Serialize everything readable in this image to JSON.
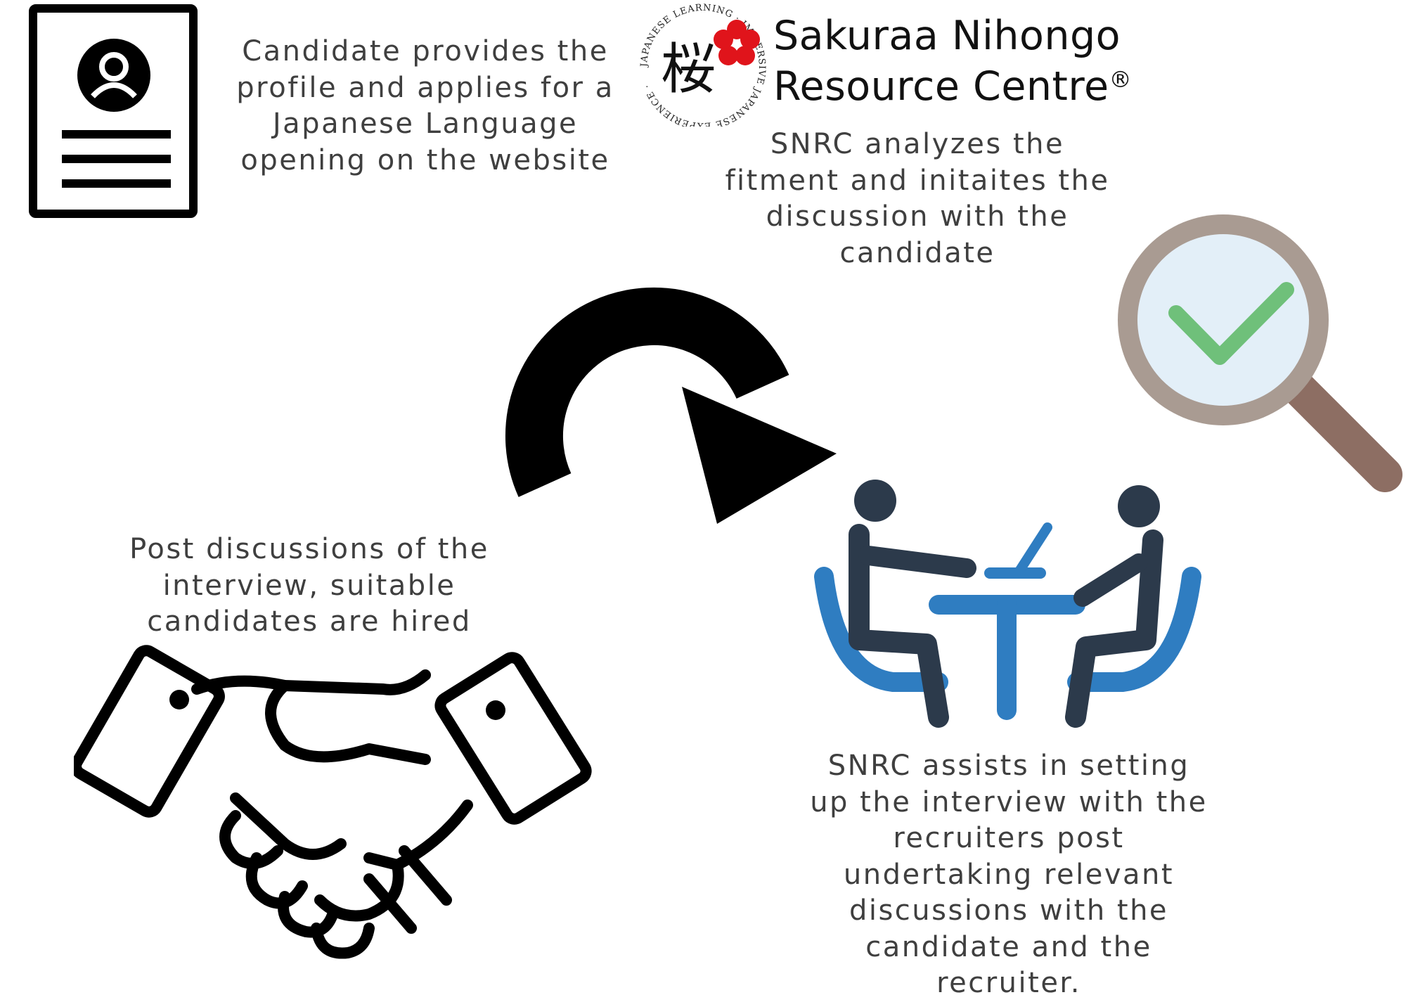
{
  "logo": {
    "kanji": "桜",
    "ring_text": "JAPANESE LEARNING · IMMERSIVE JAPANESE EXPERIENCE ·",
    "brand_line1": "Sakuraa Nihongo",
    "brand_line2": "Resource Centre",
    "registered_mark": "®",
    "flower_color": "#e0141b"
  },
  "steps": [
    {
      "id": "apply",
      "icon": "profile-document-icon",
      "lines": [
        "Candidate provides the",
        "profile and applies for a",
        "Japanese Language",
        "opening on the website"
      ]
    },
    {
      "id": "analyze",
      "icon": "magnifier-check-icon",
      "lines": [
        "SNRC analyzes the",
        "fitment and initaites the",
        "discussion with the",
        "candidate"
      ]
    },
    {
      "id": "hire",
      "icon": "handshake-icon",
      "lines": [
        "Post discussions of the",
        "interview, suitable",
        "candidates are hired"
      ]
    },
    {
      "id": "interview",
      "icon": "interview-meeting-icon",
      "lines": [
        "SNRC assists in setting",
        "up the interview with the",
        "recruiters post",
        "undertaking relevant",
        "discussions with the",
        "candidate and the",
        "recruiter."
      ]
    }
  ],
  "colors": {
    "text": "#3f3f3f",
    "check": "#6fc07a",
    "lens": "#e3eff8",
    "magnifier_frame": "#a99b92",
    "magnifier_handle": "#8d6e63",
    "chair_blue": "#2f7dc1",
    "person_dark": "#2c3a4b"
  }
}
